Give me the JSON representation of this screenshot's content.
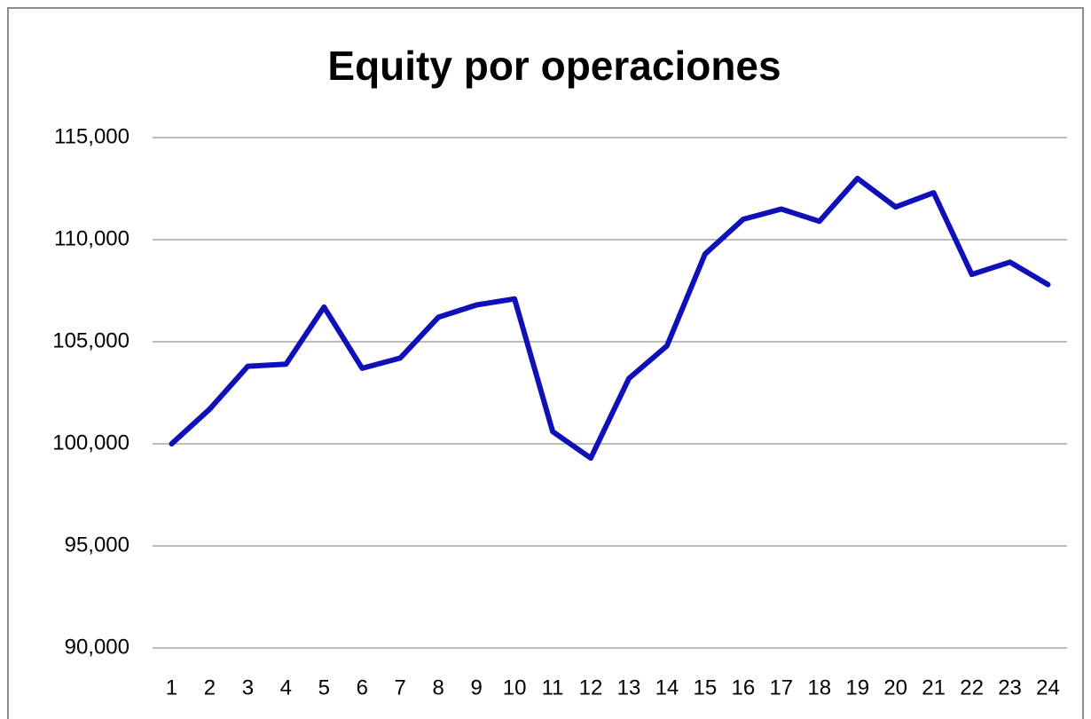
{
  "chart_data": {
    "type": "line",
    "title": "Equity por operaciones",
    "categories": [
      "1",
      "2",
      "3",
      "4",
      "5",
      "6",
      "7",
      "8",
      "9",
      "10",
      "11",
      "12",
      "13",
      "14",
      "15",
      "16",
      "17",
      "18",
      "19",
      "20",
      "21",
      "22",
      "23",
      "24"
    ],
    "series": [
      {
        "color": "#1010b8",
        "values": [
          100000,
          101700,
          103800,
          103900,
          106700,
          103700,
          104200,
          106200,
          106800,
          107100,
          100600,
          99300,
          103200,
          104800,
          109300,
          111000,
          111500,
          110900,
          113000,
          111600,
          112300,
          108300,
          108900,
          107800
        ]
      }
    ],
    "ylim": [
      90000,
      115000
    ],
    "yticks": [
      {
        "value": 90000,
        "label": "90,000"
      },
      {
        "value": 95000,
        "label": "95,000"
      },
      {
        "value": 100000,
        "label": "100,000"
      },
      {
        "value": 105000,
        "label": "105,000"
      },
      {
        "value": 110000,
        "label": "110,000"
      },
      {
        "value": 115000,
        "label": "115,000"
      }
    ],
    "grid": true
  }
}
